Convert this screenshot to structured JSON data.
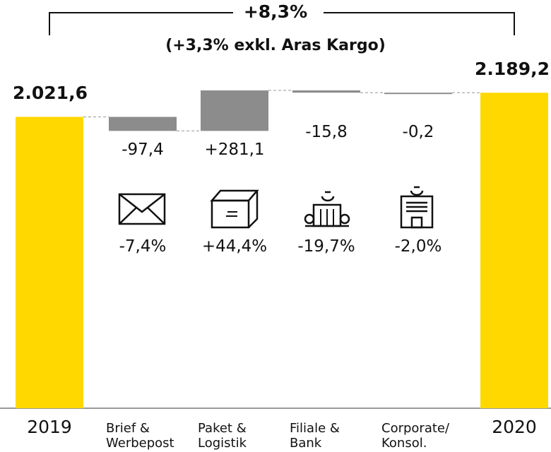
{
  "chart_data": {
    "type": "waterfall",
    "title": "+8,3%",
    "subtitle": "(+3,3% exkl. Aras Kargo)",
    "categories": [
      "2019",
      "Brief & Werbepost",
      "Paket & Logistik",
      "Filiale & Bank",
      "Corporate/ Konsol.",
      "2020"
    ],
    "values": [
      2021.6,
      -97.4,
      281.1,
      -15.8,
      -0.2,
      2189.2
    ],
    "value_labels": [
      "2.021,6",
      "-97,4",
      "+281,1",
      "-15,8",
      "-0,2",
      "2.189,2"
    ],
    "change_labels": [
      null,
      "-7,4%",
      "+44,4%",
      "-19,7%",
      "-2,0%",
      null
    ],
    "totals": [
      true,
      false,
      false,
      false,
      false,
      true
    ],
    "total_color": "#ffd800",
    "delta_color": "#8c8c8c"
  }
}
